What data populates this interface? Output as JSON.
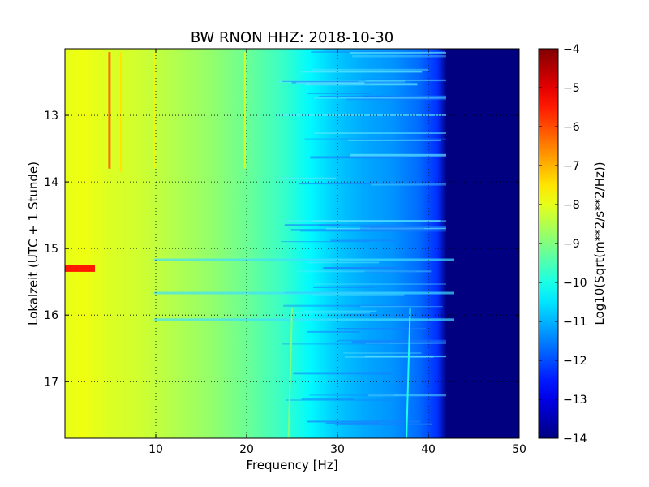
{
  "chart_data": {
    "type": "heatmap",
    "title": "BW RNON HHZ: 2018-10-30",
    "xlabel": "Frequency [Hz]",
    "ylabel": "Lokalzeit (UTC + 1 Stunde)",
    "xlim": [
      0,
      50
    ],
    "ylim": [
      12.0,
      17.85
    ],
    "y_inverted": true,
    "x_ticks": [
      "10",
      "20",
      "30",
      "40",
      "50"
    ],
    "y_ticks": [
      "13",
      "14",
      "15",
      "16",
      "17"
    ],
    "grid": true,
    "colormap": "jet",
    "colorbar": {
      "label": "Log10(Sqrt(m**2/s**2/Hz))",
      "range": [
        -14,
        -4
      ],
      "ticks": [
        "-4",
        "-5",
        "-6",
        "-7",
        "-8",
        "-9",
        "-10",
        "-11",
        "-12",
        "-13",
        "-14"
      ]
    },
    "spectrum_profile": {
      "frequency_hz": [
        0,
        2,
        5,
        8,
        12,
        16,
        20,
        24,
        27,
        30,
        33,
        36,
        39,
        41,
        42,
        50
      ],
      "log10_amplitude": [
        -8.0,
        -7.9,
        -8.1,
        -8.2,
        -8.5,
        -8.8,
        -9.2,
        -9.7,
        -10.3,
        -10.8,
        -11.1,
        -11.3,
        -11.7,
        -12.3,
        -14.0,
        -14.0
      ]
    },
    "features": [
      {
        "name": "Line 4.9 Hz",
        "freq_hz": 4.9,
        "time_start": 12.05,
        "time_end": 13.8,
        "log10_amplitude": -6.3
      },
      {
        "name": "Line 6.2 Hz",
        "freq_hz": 6.2,
        "time_start": 12.05,
        "time_end": 13.85,
        "log10_amplitude": -7.5
      },
      {
        "name": "Line 9.8 Hz",
        "freq_hz": 9.8,
        "time_start": 12.05,
        "time_end": 13.8,
        "log10_amplitude": -7.6
      },
      {
        "name": "Line 19.8 Hz",
        "freq_hz": 19.8,
        "time_start": 12.05,
        "time_end": 13.8,
        "log10_amplitude": -8.2
      },
      {
        "name": "Burst 15.3",
        "freq_hz": 1.5,
        "time_start": 15.25,
        "time_end": 15.35,
        "log10_amplitude": -5.5
      },
      {
        "name": "Line 25 Hz",
        "freq_hz": 25.0,
        "time_start": 15.9,
        "time_end": 17.85,
        "log10_amplitude": -9.0
      },
      {
        "name": "Line 38 Hz",
        "freq_hz": 38.0,
        "time_start": 15.9,
        "time_end": 17.85,
        "log10_amplitude": -10.0
      }
    ]
  }
}
